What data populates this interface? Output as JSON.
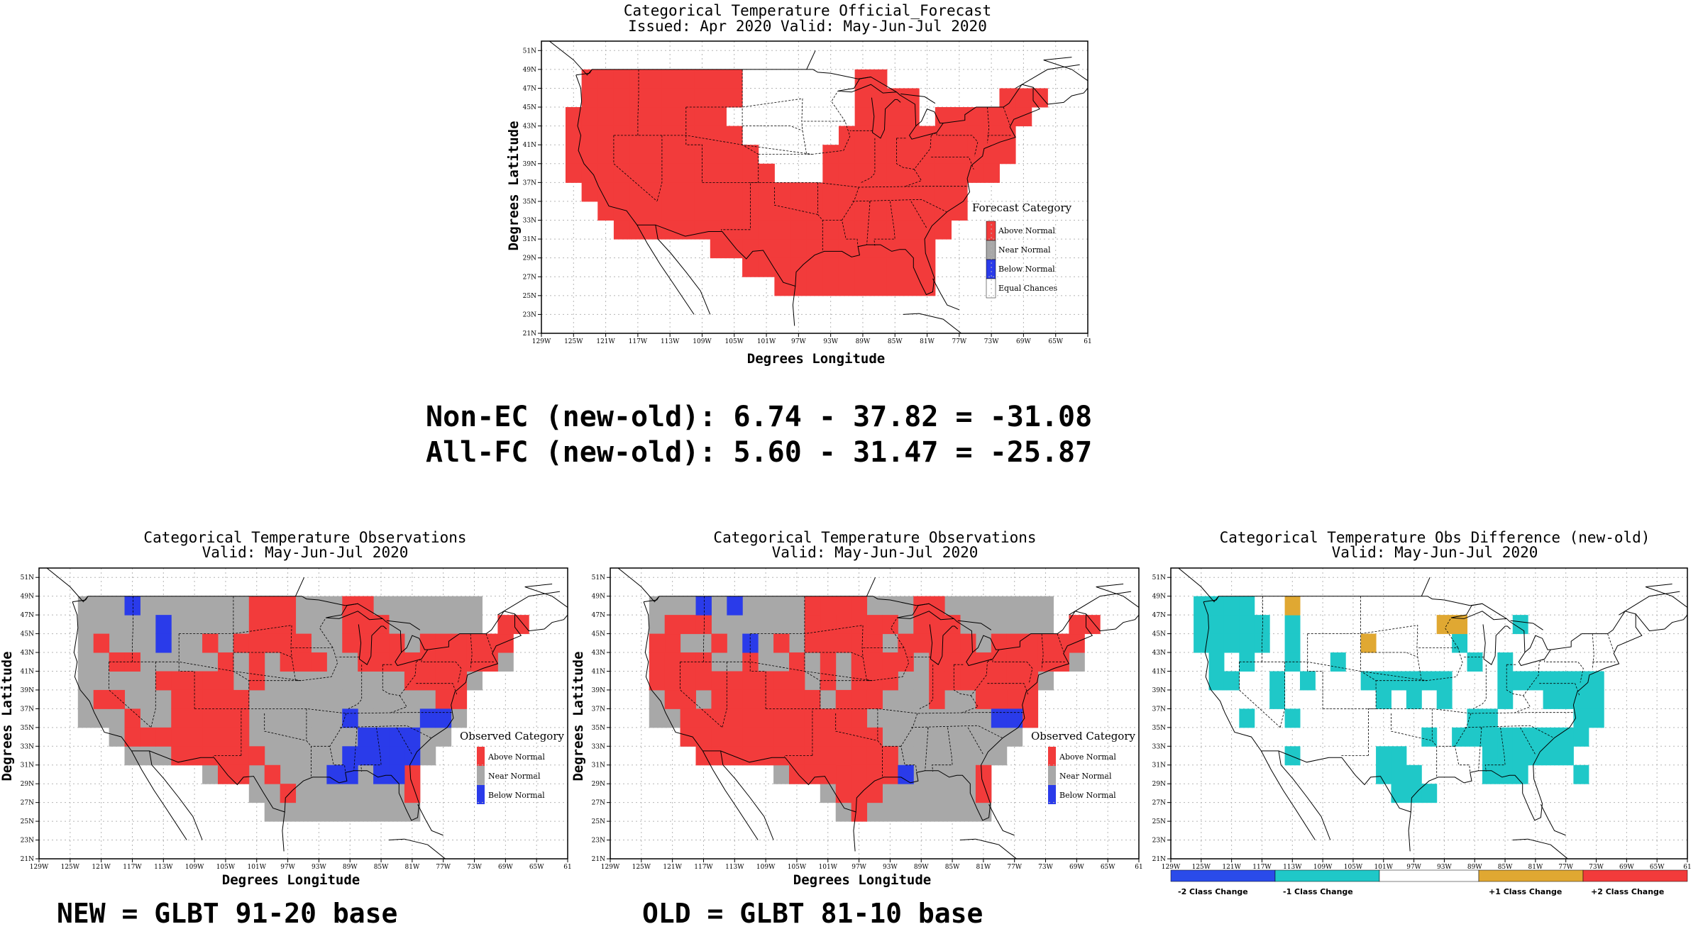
{
  "colors": {
    "above": "#f23b3b",
    "near": "#a8a8a8",
    "below": "#2a3bea",
    "equal": "#ffffff",
    "cyan": "#1fc8c8",
    "gold": "#e0a832",
    "blue2": "#2a4bea"
  },
  "axis": {
    "lon_ticks": [
      "129W",
      "125W",
      "121W",
      "117W",
      "113W",
      "109W",
      "105W",
      "101W",
      "97W",
      "93W",
      "89W",
      "85W",
      "81W",
      "77W",
      "73W",
      "69W",
      "65W",
      "61"
    ],
    "lat_ticks": [
      "51N",
      "49N",
      "47N",
      "45N",
      "43N",
      "41N",
      "39N",
      "37N",
      "35N",
      "33N",
      "31N",
      "29N",
      "27N",
      "25N",
      "23N",
      "21N"
    ],
    "x_label": "Degrees Longitude",
    "y_label": "Degrees Latitude"
  },
  "forecast_map": {
    "title1": "Categorical Temperature Official_Forecast",
    "title2": "Issued: Apr 2020 Valid: May-Jun-Jul 2020",
    "legend_title": "Forecast Category",
    "legend": [
      "Above Normal",
      "Near Normal",
      "Below Normal",
      "Equal Chances"
    ]
  },
  "stats": {
    "non_ec": "Non-EC (new-old): 6.74 - 37.82 = -31.08",
    "all_fc": "All-FC (new-old): 5.60 - 31.47 = -25.87"
  },
  "obs_new_map": {
    "title1": "Categorical Temperature Observations",
    "title2": "Valid: May-Jun-Jul 2020",
    "legend_title": "Observed Category",
    "legend": [
      "Above Normal",
      "Near Normal",
      "Below Normal"
    ],
    "caption": "NEW = GLBT 91-20 base"
  },
  "obs_old_map": {
    "title1": "Categorical Temperature Observations",
    "title2": "Valid: May-Jun-Jul 2020",
    "legend_title": "Observed Category",
    "legend": [
      "Above Normal",
      "Near Normal",
      "Below Normal"
    ],
    "caption": "OLD = GLBT 81-10 base"
  },
  "diff_map": {
    "title1": "Categorical Temperature Obs Difference (new-old)",
    "title2": "Valid: May-Jun-Jul 2020",
    "colorbar": [
      "-2 Class Change",
      "-1 Class Change",
      "+1 Class Change",
      "+2 Class Change"
    ]
  }
}
